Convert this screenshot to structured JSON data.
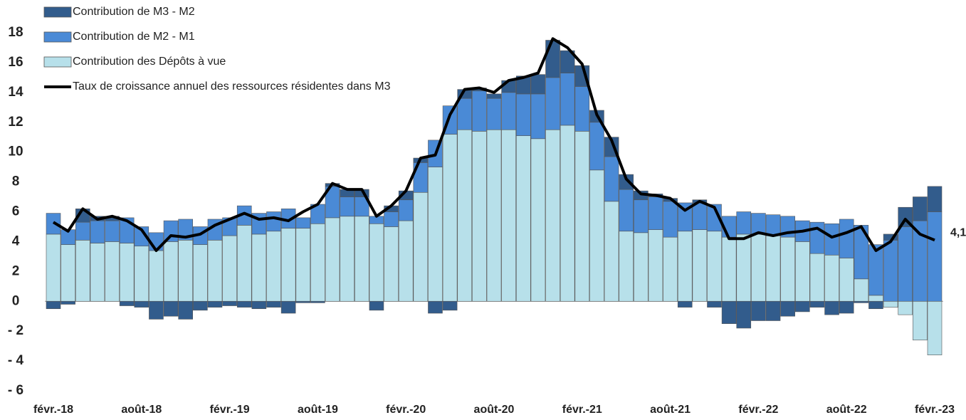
{
  "chart_data": {
    "type": "stacked-bar-line",
    "categories": [
      "févr.-18",
      null,
      null,
      null,
      null,
      null,
      "août-18",
      null,
      null,
      null,
      null,
      null,
      "févr.-19",
      null,
      null,
      null,
      null,
      null,
      "août-19",
      null,
      null,
      null,
      null,
      null,
      "févr.-20",
      null,
      null,
      null,
      null,
      null,
      "août-20",
      null,
      null,
      null,
      null,
      null,
      "févr.-21",
      null,
      null,
      null,
      null,
      null,
      "août-21",
      null,
      null,
      null,
      null,
      null,
      "févr.-22",
      null,
      null,
      null,
      null,
      null,
      "août-22",
      null,
      null,
      null,
      null,
      null,
      "févr.-23"
    ],
    "series": [
      {
        "name": "Contribution des Dépôts à vue",
        "color": "#b7e0ea",
        "values": [
          4.5,
          3.8,
          4.1,
          3.9,
          4.0,
          3.9,
          3.7,
          3.4,
          4.0,
          4.1,
          3.8,
          4.1,
          4.4,
          5.1,
          4.5,
          4.7,
          4.9,
          4.9,
          5.2,
          5.6,
          5.7,
          5.7,
          5.2,
          5.0,
          5.4,
          7.3,
          9.0,
          11.2,
          11.5,
          11.4,
          11.5,
          11.5,
          11.1,
          10.9,
          11.5,
          11.8,
          11.4,
          8.8,
          6.7,
          4.7,
          4.6,
          4.8,
          4.3,
          4.7,
          4.8,
          4.7,
          4.3,
          4.5,
          4.5,
          4.4,
          4.3,
          4.0,
          3.2,
          3.1,
          2.9,
          1.5,
          0.4,
          -0.4,
          -0.9,
          -2.6,
          -3.6
        ]
      },
      {
        "name": "Contribution de M2 - M1",
        "color": "#4a8ad6",
        "values": [
          1.4,
          1.0,
          1.2,
          1.5,
          1.4,
          1.7,
          1.3,
          1.2,
          1.4,
          1.4,
          1.2,
          1.4,
          1.2,
          1.3,
          1.4,
          1.3,
          1.3,
          0.7,
          1.3,
          2.1,
          1.3,
          1.3,
          0.5,
          1.0,
          1.4,
          2.0,
          1.8,
          1.9,
          2.1,
          2.7,
          2.1,
          2.5,
          2.8,
          3.0,
          3.5,
          3.5,
          3.0,
          3.2,
          3.0,
          2.8,
          2.2,
          2.2,
          2.4,
          1.9,
          1.8,
          1.8,
          1.4,
          1.5,
          1.4,
          1.4,
          1.4,
          1.4,
          2.1,
          2.1,
          2.6,
          3.6,
          3.4,
          4.1,
          5.0,
          5.4,
          6.0
        ]
      },
      {
        "name": "Contribution de M3 - M2",
        "color": "#325c8c",
        "values": [
          -0.5,
          -0.2,
          0.9,
          0.3,
          0.3,
          -0.3,
          -0.4,
          -1.2,
          -1.0,
          -1.2,
          -0.6,
          -0.4,
          -0.3,
          -0.4,
          -0.5,
          -0.4,
          -0.8,
          -0.1,
          -0.1,
          0.2,
          0.5,
          0.5,
          -0.6,
          0.4,
          0.6,
          0.3,
          -0.8,
          -0.6,
          0.6,
          0.2,
          0.3,
          0.8,
          1.2,
          1.3,
          2.5,
          1.5,
          1.4,
          0.8,
          1.3,
          1.0,
          0.6,
          0.2,
          0.2,
          -0.4,
          0.2,
          -0.4,
          -1.5,
          -1.8,
          -1.3,
          -1.3,
          -1.0,
          -0.7,
          -0.4,
          -0.9,
          -0.8,
          -0.1,
          -0.5,
          0.4,
          1.3,
          1.6,
          1.7
        ]
      },
      {
        "name": "Taux de croissance annuel des ressources résidentes dans M3",
        "color": "#000000",
        "kind": "line",
        "values": [
          5.3,
          4.7,
          6.2,
          5.5,
          5.7,
          5.4,
          4.8,
          3.4,
          4.4,
          4.3,
          4.5,
          5.1,
          5.5,
          5.9,
          5.5,
          5.6,
          5.4,
          6.0,
          6.5,
          7.9,
          7.5,
          7.5,
          5.7,
          6.4,
          7.4,
          9.6,
          9.8,
          12.5,
          14.2,
          14.3,
          14.0,
          14.8,
          15.0,
          15.3,
          17.6,
          17.0,
          15.9,
          12.5,
          10.8,
          8.2,
          7.2,
          7.1,
          6.9,
          6.1,
          6.7,
          6.3,
          4.2,
          4.2,
          4.6,
          4.4,
          4.6,
          4.7,
          4.9,
          4.3,
          4.6,
          5.0,
          3.4,
          4.0,
          5.5,
          4.5,
          4.1
        ],
        "value_labels": [
          null,
          null,
          null,
          null,
          null,
          null,
          null,
          null,
          null,
          null,
          null,
          null,
          null,
          null,
          null,
          null,
          null,
          null,
          null,
          null,
          null,
          null,
          null,
          null,
          null,
          null,
          null,
          null,
          null,
          null,
          null,
          null,
          null,
          null,
          null,
          null,
          null,
          null,
          null,
          null,
          null,
          null,
          null,
          null,
          null,
          null,
          null,
          null,
          null,
          null,
          null,
          null,
          null,
          null,
          null,
          null,
          null,
          null,
          null,
          null,
          "4,1"
        ]
      }
    ],
    "ylim": [
      -6,
      18
    ],
    "yticks": [
      18,
      16,
      14,
      12,
      10,
      8,
      6,
      4,
      2,
      0,
      {
        "value": -2,
        "label": "- 2"
      },
      {
        "value": -4,
        "label": "- 4"
      },
      {
        "value": -6,
        "label": "- 6"
      }
    ]
  }
}
